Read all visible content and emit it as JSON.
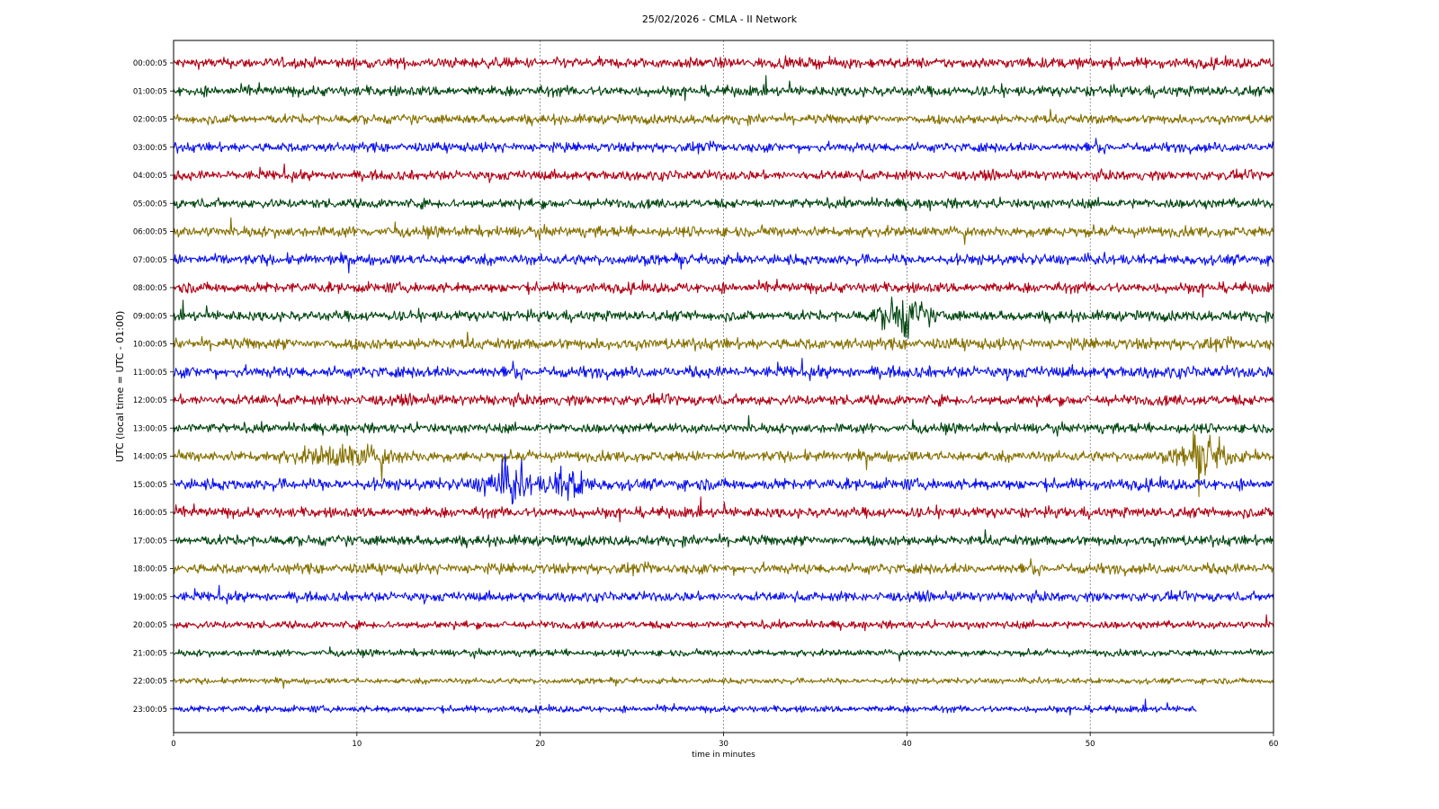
{
  "chart_data": {
    "type": "line",
    "title": "25/02/2026 - CMLA - II Network",
    "xlabel": "time in minutes",
    "ylabel": "UTC (local time = UTC - 01:00)",
    "xlim": [
      0,
      60
    ],
    "x_ticks": [
      "0",
      "10",
      "20",
      "30",
      "40",
      "50",
      "60"
    ],
    "grid": "vertical-dashed",
    "colors": [
      "#b00014",
      "#00450f",
      "#857000",
      "#0a10f0"
    ],
    "rows": [
      {
        "label": "00:00:05",
        "amp": 0.55
      },
      {
        "label": "01:00:05",
        "amp": 0.55
      },
      {
        "label": "02:00:05",
        "amp": 0.5
      },
      {
        "label": "03:00:05",
        "amp": 0.5
      },
      {
        "label": "04:00:05",
        "amp": 0.5
      },
      {
        "label": "05:00:05",
        "amp": 0.5
      },
      {
        "label": "06:00:05",
        "amp": 0.55
      },
      {
        "label": "07:00:05",
        "amp": 0.55
      },
      {
        "label": "08:00:05",
        "amp": 0.55
      },
      {
        "label": "09:00:05",
        "amp": 0.55,
        "events": [
          {
            "t": 39.8,
            "w": 1.2,
            "a": 1.9
          }
        ]
      },
      {
        "label": "10:00:05",
        "amp": 0.6
      },
      {
        "label": "11:00:05",
        "amp": 0.6
      },
      {
        "label": "12:00:05",
        "amp": 0.55
      },
      {
        "label": "13:00:05",
        "amp": 0.5
      },
      {
        "label": "14:00:05",
        "amp": 0.55,
        "events": [
          {
            "t": 9.5,
            "w": 2.5,
            "a": 0.9
          },
          {
            "t": 56.2,
            "w": 1.2,
            "a": 1.9
          }
        ]
      },
      {
        "label": "15:00:05",
        "amp": 0.6,
        "events": [
          {
            "t": 18.2,
            "w": 1.2,
            "a": 1.9
          },
          {
            "t": 21.5,
            "w": 1.0,
            "a": 1.4
          }
        ]
      },
      {
        "label": "16:00:05",
        "amp": 0.55
      },
      {
        "label": "17:00:05",
        "amp": 0.55
      },
      {
        "label": "18:00:05",
        "amp": 0.55
      },
      {
        "label": "19:00:05",
        "amp": 0.5
      },
      {
        "label": "20:00:05",
        "amp": 0.4
      },
      {
        "label": "21:00:05",
        "amp": 0.35
      },
      {
        "label": "22:00:05",
        "amp": 0.3
      },
      {
        "label": "23:00:05",
        "amp": 0.35,
        "end": 55.8
      }
    ]
  }
}
